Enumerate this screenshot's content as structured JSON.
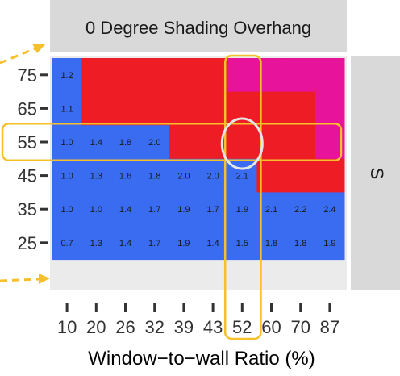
{
  "chart_data": {
    "type": "heatmap",
    "title": "0 Degree Shading Overhang",
    "facet_label": "S",
    "xlabel": "Window−to−wall Ratio (%)",
    "ylabel": "",
    "x_categories": [
      "10",
      "20",
      "26",
      "32",
      "39",
      "43",
      "52",
      "60",
      "70",
      "87"
    ],
    "y_categories": [
      "25",
      "35",
      "45",
      "55",
      "65",
      "75"
    ],
    "cells": [
      {
        "y": "75",
        "values": [
          1.2,
          null,
          null,
          null,
          null,
          null,
          null,
          null,
          null,
          null
        ],
        "fills": [
          "blue",
          "red",
          "red",
          "red",
          "red",
          "red",
          "magenta",
          "magenta",
          "magenta",
          "magenta"
        ]
      },
      {
        "y": "65",
        "values": [
          1.1,
          null,
          null,
          null,
          null,
          null,
          null,
          null,
          null,
          null
        ],
        "fills": [
          "blue",
          "red",
          "red",
          "red",
          "red",
          "red",
          "red",
          "red",
          "red",
          "magenta"
        ]
      },
      {
        "y": "55",
        "values": [
          1.0,
          1.4,
          1.8,
          2.0,
          null,
          null,
          null,
          null,
          null,
          null
        ],
        "fills": [
          "blue",
          "blue",
          "blue",
          "blue",
          "red",
          "red",
          "red",
          "red",
          "red",
          "magenta"
        ]
      },
      {
        "y": "45",
        "values": [
          1.0,
          1.3,
          1.6,
          1.8,
          2.0,
          2.0,
          2.1,
          null,
          null,
          null
        ],
        "fills": [
          "blue",
          "blue",
          "blue",
          "blue",
          "blue",
          "blue",
          "blue",
          "red",
          "red",
          "red"
        ]
      },
      {
        "y": "35",
        "values": [
          1.0,
          1.0,
          1.4,
          1.7,
          1.9,
          1.7,
          1.9,
          2.1,
          2.2,
          2.4
        ],
        "fills": [
          "blue",
          "blue",
          "blue",
          "blue",
          "blue",
          "blue",
          "blue",
          "blue",
          "blue",
          "blue"
        ]
      },
      {
        "y": "25",
        "values": [
          0.7,
          1.3,
          1.4,
          1.7,
          1.9,
          1.4,
          1.5,
          1.8,
          1.8,
          1.9
        ],
        "fills": [
          "blue",
          "blue",
          "blue",
          "blue",
          "blue",
          "blue",
          "blue",
          "blue",
          "blue",
          "blue"
        ]
      }
    ],
    "highlight": {
      "column": "52",
      "row": "55"
    },
    "colors": {
      "blue": "#3a6cf2",
      "red": "#ee1c25",
      "magenta": "#e8139b",
      "highlight": "#f5c02a",
      "circle": "#e5e5e5",
      "strip": "#d9d9d9",
      "panel": "#ebebeb"
    }
  }
}
